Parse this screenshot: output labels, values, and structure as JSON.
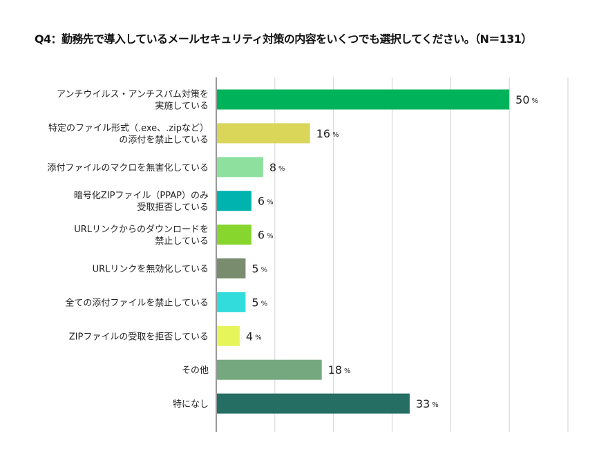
{
  "chart_data": {
    "type": "bar",
    "orientation": "horizontal",
    "title": "Q4：勤務先で導入しているメールセキュリティ対策の内容をいくつでも選択してください。（N＝131）",
    "categories": [
      [
        "アンチウイルス・アンチスパム対策を",
        "実施している"
      ],
      [
        "特定のファイル形式（.exe、.zipなど）",
        "の添付を禁止している"
      ],
      [
        "添付ファイルのマクロを無害化している"
      ],
      [
        "暗号化ZIPファイル（PPAP）のみ",
        "受取拒否している"
      ],
      [
        "URLリンクからのダウンロードを",
        "禁止している"
      ],
      [
        "URLリンクを無効化している"
      ],
      [
        "全ての添付ファイルを禁止している"
      ],
      [
        "ZIPファイルの受取を拒否している"
      ],
      [
        "その他"
      ],
      [
        "特になし"
      ]
    ],
    "values": [
      50,
      16,
      8,
      6,
      6,
      5,
      5,
      4,
      18,
      33
    ],
    "unit": "%",
    "colors": [
      "#00b35a",
      "#d9d65a",
      "#8ee09e",
      "#00b3ae",
      "#86d62e",
      "#7a8c6e",
      "#33dcdc",
      "#e6f55a",
      "#76a87f",
      "#256e63"
    ],
    "xlim": [
      0,
      60
    ],
    "grid": true,
    "xlabel": "",
    "ylabel": ""
  }
}
